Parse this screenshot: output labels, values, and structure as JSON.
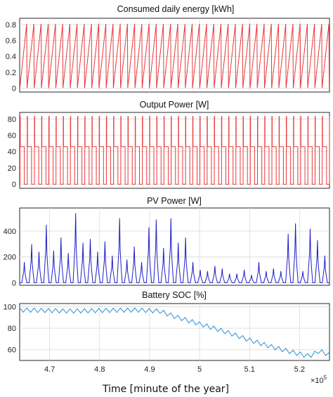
{
  "x_axis": {
    "label": "Time [minute of the year]",
    "ticks": [
      4.7,
      4.8,
      4.9,
      5,
      5.1,
      5.2
    ],
    "tick_labels": [
      "4.7",
      "4.8",
      "4.9",
      "5",
      "5.1",
      "5.2"
    ],
    "exponent_label": "×10",
    "exponent_power": "5",
    "range": [
      4.64,
      5.26
    ]
  },
  "colors": {
    "red": "#e8383b",
    "blue": "#1f1fc8",
    "lightblue": "#2b8fd6"
  },
  "chart_data": [
    {
      "type": "line",
      "title": "Consumed daily energy [kWh]",
      "ylim": [
        -0.05,
        0.88
      ],
      "yticks": [
        0,
        0.2,
        0.4,
        0.6,
        0.8
      ],
      "ytick_labels": [
        "0",
        "0.2",
        "0.4",
        "0.6",
        "0.8"
      ],
      "grid": true,
      "pattern": {
        "kind": "sawtooth_daily",
        "start": 4.64,
        "end": 5.26,
        "period": 0.0144,
        "peak": 0.81,
        "low": 0
      },
      "color": "#e8383b"
    },
    {
      "type": "line",
      "title": "Output Power [W]",
      "ylim": [
        -5,
        88
      ],
      "yticks": [
        0,
        20,
        40,
        60,
        80
      ],
      "ytick_labels": [
        "0",
        "20",
        "40",
        "60",
        "80"
      ],
      "grid": true,
      "pattern": {
        "kind": "daily_pulse",
        "start": 4.64,
        "end": 5.26,
        "period": 0.0144,
        "base": 0,
        "mid": 46,
        "peak": 83
      },
      "color": "#e8383b"
    },
    {
      "type": "line",
      "title": "PV Power [W]",
      "ylim": [
        -20,
        580
      ],
      "yticks": [
        0,
        200,
        400
      ],
      "ytick_labels": [
        "0",
        "200",
        "400"
      ],
      "grid": true,
      "daily_peaks": [
        160,
        300,
        240,
        450,
        250,
        350,
        230,
        540,
        310,
        340,
        240,
        320,
        210,
        500,
        180,
        280,
        160,
        430,
        490,
        270,
        500,
        310,
        350,
        160,
        100,
        90,
        130,
        110,
        70,
        70,
        100,
        60,
        160,
        90,
        110,
        90,
        380,
        460,
        90,
        420,
        330,
        210
      ],
      "color": "#1f1fc8"
    },
    {
      "type": "line",
      "title": "Battery SOC [%]",
      "ylim": [
        50,
        103
      ],
      "yticks": [
        60,
        80,
        100
      ],
      "ytick_labels": [
        "60",
        "80",
        "100"
      ],
      "grid": true,
      "trend_points": [
        [
          4.64,
          97
        ],
        [
          4.74,
          96
        ],
        [
          4.87,
          97
        ],
        [
          4.92,
          96
        ],
        [
          4.95,
          91
        ],
        [
          5.0,
          84
        ],
        [
          5.05,
          77
        ],
        [
          5.1,
          69
        ],
        [
          5.15,
          62
        ],
        [
          5.2,
          56
        ],
        [
          5.22,
          54
        ],
        [
          5.24,
          59
        ],
        [
          5.26,
          55
        ]
      ],
      "sawtooth_amplitude": 4,
      "color": "#2b8fd6"
    }
  ]
}
